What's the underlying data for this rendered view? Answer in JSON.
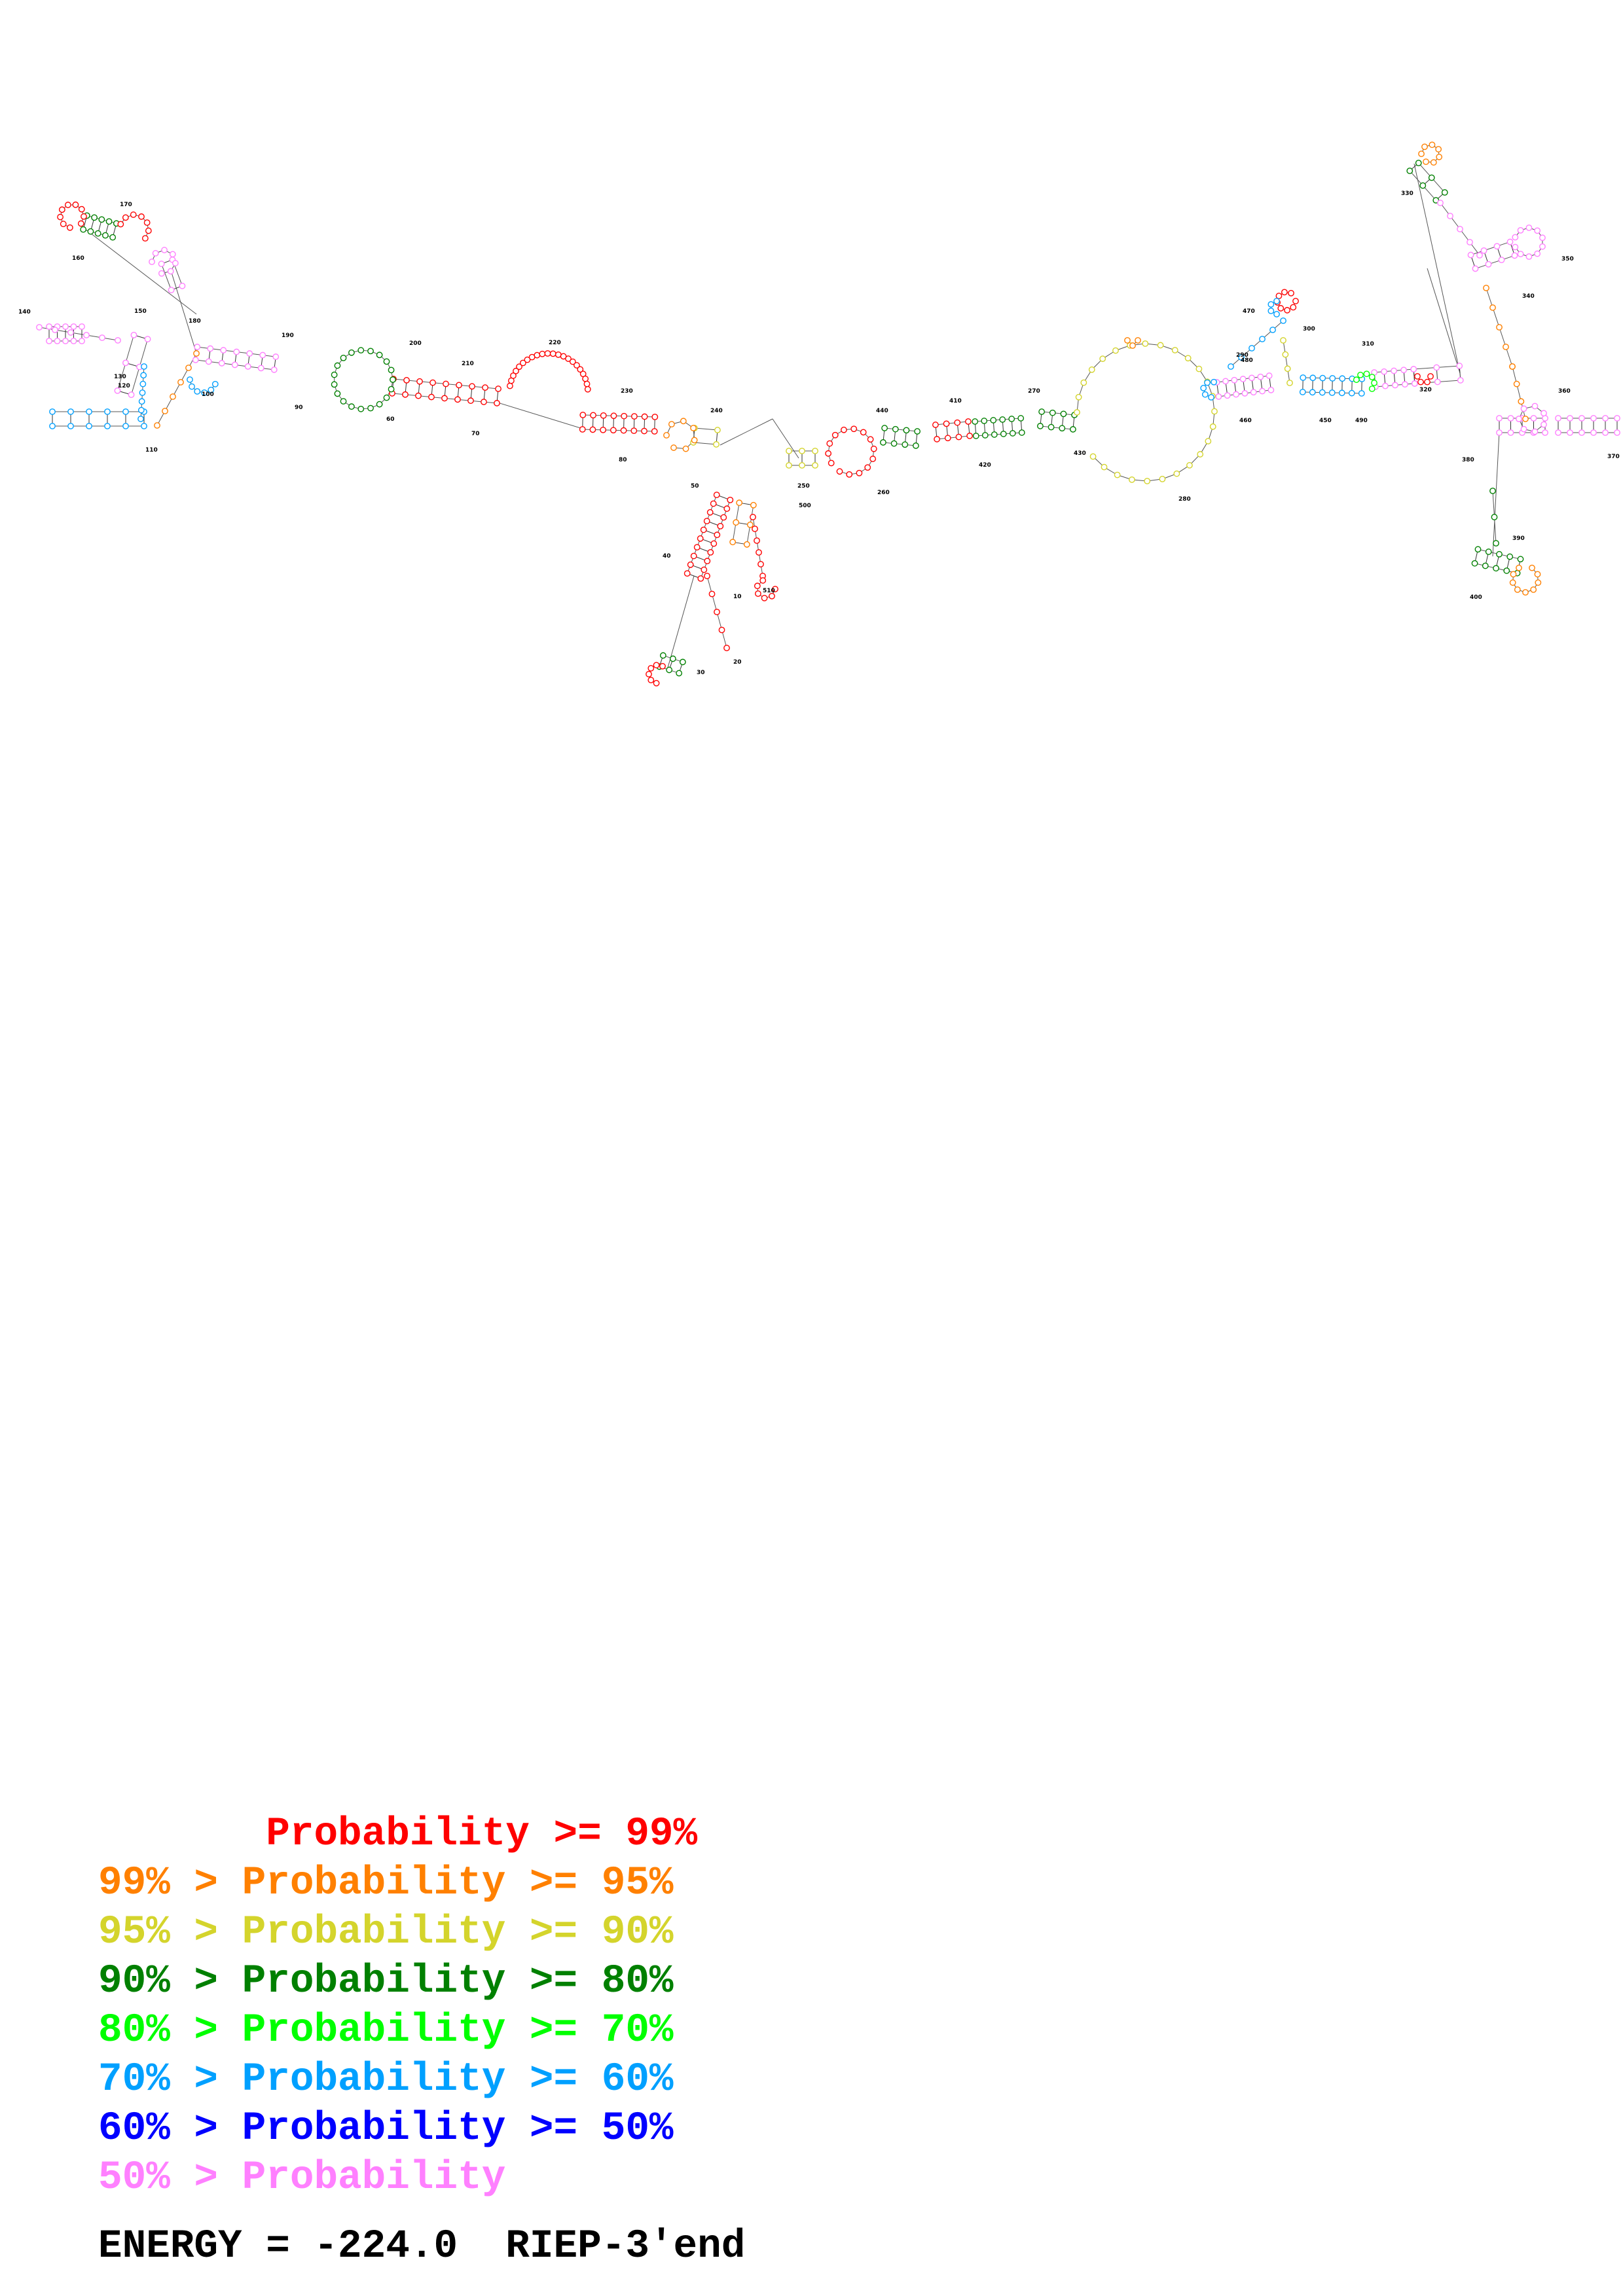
{
  "legend": [
    {
      "text": "       Probability >= 99%",
      "color": "#ff0000"
    },
    {
      "text": "99% > Probability >= 95%",
      "color": "#ff8000"
    },
    {
      "text": "95% > Probability >= 90%",
      "color": "#d4d42c"
    },
    {
      "text": "90% > Probability >= 80%",
      "color": "#008000"
    },
    {
      "text": "80% > Probability >= 70%",
      "color": "#00ff00"
    },
    {
      "text": "70% > Probability >= 60%",
      "color": "#00a0ff"
    },
    {
      "text": "60% > Probability >= 50%",
      "color": "#0000ff"
    },
    {
      "text": "50% > Probability",
      "color": "#ff80ff"
    }
  ],
  "energy_line": "ENERGY = -224.0  RIEP-3'end",
  "diagram": {
    "nucleotide_labels": [
      "10",
      "20",
      "30",
      "40",
      "50",
      "60",
      "70",
      "80",
      "90",
      "100",
      "110",
      "120",
      "130",
      "140",
      "150",
      "160",
      "170",
      "180",
      "190",
      "200",
      "210",
      "220",
      "230",
      "240",
      "250",
      "260",
      "270",
      "280",
      "290",
      "300",
      "310",
      "320",
      "330",
      "340",
      "350",
      "360",
      "370",
      "380",
      "390",
      "400",
      "410",
      "420",
      "430",
      "440",
      "450",
      "460",
      "470",
      "480",
      "490",
      "500",
      "510"
    ],
    "colors": {
      "p99": "#ff0000",
      "p95": "#ff8000",
      "p90": "#d4d42c",
      "p80": "#008000",
      "p70": "#00ff00",
      "p60": "#00a0ff",
      "p50": "#0000ff",
      "plow": "#ff80ff"
    }
  }
}
